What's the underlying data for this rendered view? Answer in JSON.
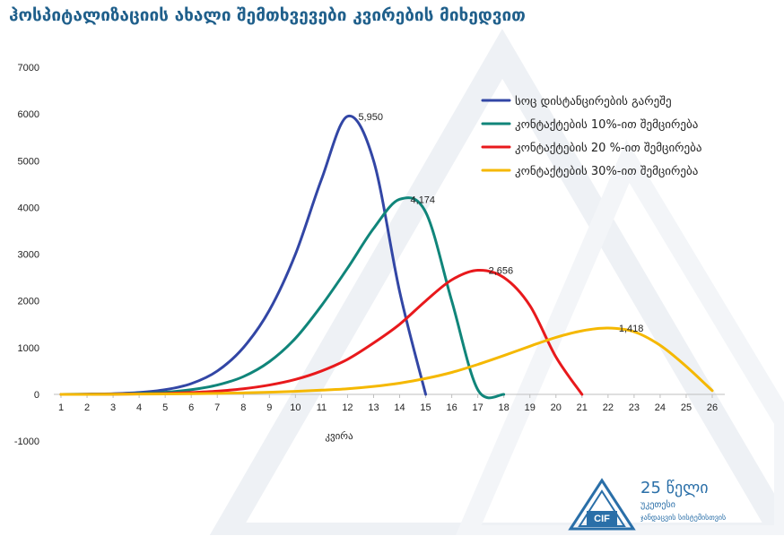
{
  "title": "ჰოსპიტალიზაციის ახალი შემთხვევები კვირების მიხედვით",
  "logo": {
    "line1": "25 წელი",
    "line2": "უკეთესი",
    "line3": "ჯანდაცვის სისტემისთვის",
    "mark": "CIF"
  },
  "chart_data": {
    "type": "line",
    "xlabel": "კვირა",
    "ylabel": "",
    "x": [
      1,
      2,
      3,
      4,
      5,
      6,
      7,
      8,
      9,
      10,
      11,
      12,
      13,
      14,
      15,
      16,
      17,
      18,
      19,
      20,
      21,
      22,
      23,
      24,
      25,
      26
    ],
    "ylim": [
      -1000,
      7000
    ],
    "yticks": [
      -1000,
      0,
      1000,
      2000,
      3000,
      4000,
      5000,
      6000,
      7000
    ],
    "grid": false,
    "legend_position": "top-right",
    "series": [
      {
        "name": "სოც დისტანცირების გარეშე",
        "color": "#3246a5",
        "points": [
          [
            1,
            0
          ],
          [
            2,
            5
          ],
          [
            3,
            15
          ],
          [
            4,
            40
          ],
          [
            5,
            100
          ],
          [
            6,
            230
          ],
          [
            7,
            500
          ],
          [
            8,
            1000
          ],
          [
            9,
            1800
          ],
          [
            10,
            3000
          ],
          [
            11,
            4600
          ],
          [
            12,
            5950
          ],
          [
            13,
            5000
          ],
          [
            14,
            2200
          ],
          [
            15,
            0
          ]
        ],
        "peak_label": "5,950",
        "peak": [
          12,
          5950
        ]
      },
      {
        "name": "კონტაქტების 10%-ით შემცირება",
        "color": "#10857a",
        "points": [
          [
            1,
            0
          ],
          [
            2,
            3
          ],
          [
            3,
            8
          ],
          [
            4,
            20
          ],
          [
            5,
            45
          ],
          [
            6,
            100
          ],
          [
            7,
            200
          ],
          [
            8,
            380
          ],
          [
            9,
            700
          ],
          [
            10,
            1200
          ],
          [
            11,
            1900
          ],
          [
            12,
            2700
          ],
          [
            13,
            3550
          ],
          [
            14,
            4174
          ],
          [
            15,
            3900
          ],
          [
            16,
            2000
          ],
          [
            17,
            100
          ],
          [
            18,
            0
          ]
        ],
        "peak_label": "4,174",
        "peak": [
          14,
          4174
        ]
      },
      {
        "name": "კონტაქტების 20 %-ით შემცირება",
        "color": "#e8191c",
        "points": [
          [
            1,
            0
          ],
          [
            2,
            2
          ],
          [
            3,
            5
          ],
          [
            4,
            10
          ],
          [
            5,
            20
          ],
          [
            6,
            40
          ],
          [
            7,
            70
          ],
          [
            8,
            120
          ],
          [
            9,
            200
          ],
          [
            10,
            320
          ],
          [
            11,
            500
          ],
          [
            12,
            750
          ],
          [
            13,
            1100
          ],
          [
            14,
            1500
          ],
          [
            15,
            2000
          ],
          [
            16,
            2450
          ],
          [
            17,
            2656
          ],
          [
            18,
            2500
          ],
          [
            19,
            1900
          ],
          [
            20,
            800
          ],
          [
            21,
            0
          ]
        ],
        "peak_label": "2,656",
        "peak": [
          17,
          2656
        ]
      },
      {
        "name": "კონტაქტების 30%-ით შემცირება",
        "color": "#f5b800",
        "points": [
          [
            1,
            0
          ],
          [
            2,
            1
          ],
          [
            3,
            3
          ],
          [
            4,
            6
          ],
          [
            5,
            10
          ],
          [
            6,
            15
          ],
          [
            7,
            22
          ],
          [
            8,
            32
          ],
          [
            9,
            45
          ],
          [
            10,
            65
          ],
          [
            11,
            90
          ],
          [
            12,
            120
          ],
          [
            13,
            170
          ],
          [
            14,
            240
          ],
          [
            15,
            340
          ],
          [
            16,
            470
          ],
          [
            17,
            640
          ],
          [
            18,
            830
          ],
          [
            19,
            1030
          ],
          [
            20,
            1220
          ],
          [
            21,
            1360
          ],
          [
            22,
            1418
          ],
          [
            23,
            1340
          ],
          [
            24,
            1050
          ],
          [
            25,
            600
          ],
          [
            26,
            80
          ]
        ],
        "peak_label": "1,418",
        "peak": [
          22,
          1418
        ]
      }
    ]
  }
}
